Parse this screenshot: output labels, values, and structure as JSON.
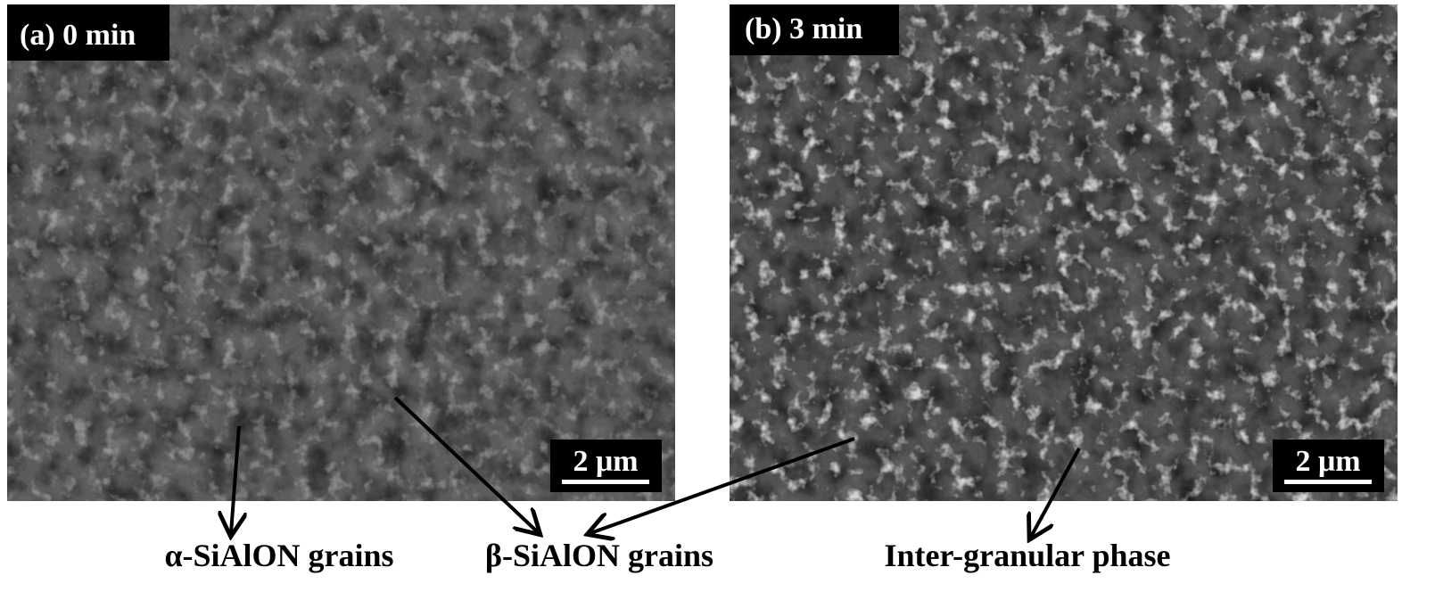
{
  "panels": [
    {
      "label": "(a) 0 min",
      "scale_bar": "2 μm"
    },
    {
      "label": "(b) 3 min",
      "scale_bar": "2 μm"
    }
  ],
  "annotations": [
    "α-SiAlON grains",
    "β-SiAlON grains",
    "Inter-granular phase"
  ]
}
